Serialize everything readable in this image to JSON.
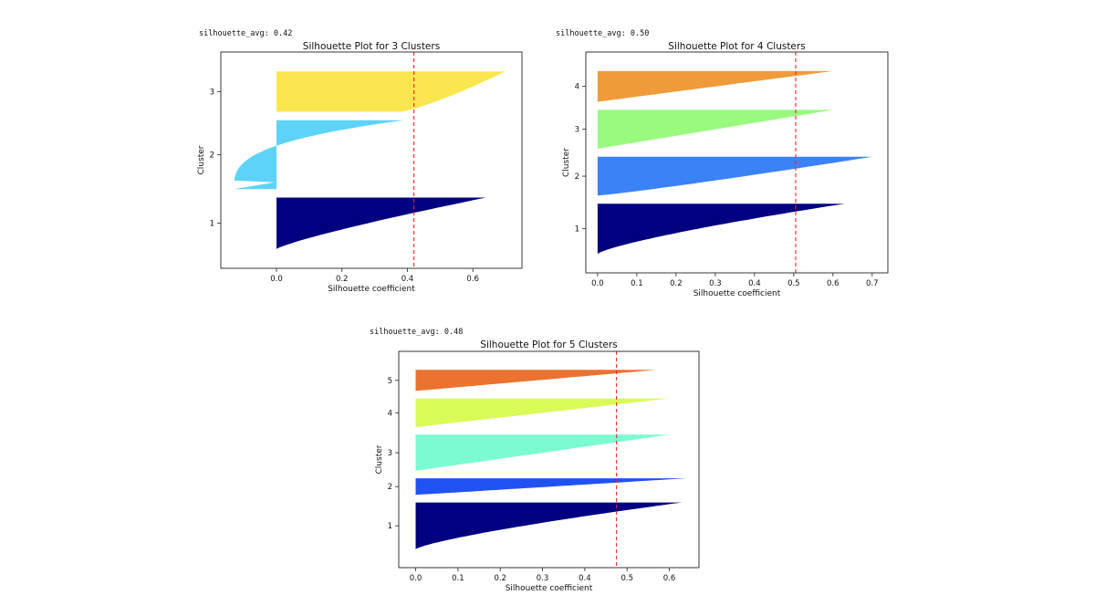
{
  "chart_data": [
    {
      "type": "silhouette",
      "avg_label": "silhouette_avg: 0.42",
      "title": "Silhouette Plot for 3 Clusters",
      "xlabel": "Silhouette coefficient",
      "ylabel": "Cluster",
      "xlim": [
        -0.17,
        0.75
      ],
      "xticks": [
        0.0,
        0.2,
        0.4,
        0.6
      ],
      "tick_labels": [
        "0.0",
        "0.2",
        "0.4",
        "0.6"
      ],
      "silhouette_avg": 0.42,
      "clusters": [
        {
          "label": "1",
          "color": "#000080",
          "size": 61,
          "max": 0.64,
          "min": 0.0,
          "curve": 1.2,
          "neg_tail": 0.0
        },
        {
          "label": "2",
          "color": "#5ed3f9",
          "size": 82,
          "max": 0.39,
          "min": -0.13,
          "curve": 3.0,
          "neg_tail": 0.12
        },
        {
          "label": "3",
          "color": "#fce64f",
          "size": 48,
          "max": 0.7,
          "min": 0.38,
          "curve": 0.8,
          "neg_tail": 0.0
        }
      ]
    },
    {
      "type": "silhouette",
      "avg_label": "silhouette_avg: 0.50",
      "title": "Silhouette Plot for 4 Clusters",
      "xlabel": "Silhouette coefficient",
      "ylabel": "Cluster",
      "xlim": [
        -0.03,
        0.74
      ],
      "xticks": [
        0.0,
        0.1,
        0.2,
        0.3,
        0.4,
        0.5,
        0.6,
        0.7
      ],
      "tick_labels": [
        "0.0",
        "0.1",
        "0.2",
        "0.3",
        "0.4",
        "0.5",
        "0.6",
        "0.7"
      ],
      "silhouette_avg": 0.505,
      "clusters": [
        {
          "label": "1",
          "color": "#000080",
          "size": 62,
          "max": 0.63,
          "min": 0.0,
          "curve": 1.3,
          "neg_tail": 0.0
        },
        {
          "label": "2",
          "color": "#3b82f6",
          "size": 48,
          "max": 0.7,
          "min": 0.0,
          "curve": 0.9,
          "neg_tail": 0.0
        },
        {
          "label": "3",
          "color": "#99fa7e",
          "size": 48,
          "max": 0.6,
          "min": 0.0,
          "curve": 1.0,
          "neg_tail": 0.0
        },
        {
          "label": "4",
          "color": "#ef9b3a",
          "size": 38,
          "max": 0.6,
          "min": 0.0,
          "curve": 1.0,
          "neg_tail": 0.0
        }
      ]
    },
    {
      "type": "silhouette",
      "avg_label": "silhouette_avg: 0.48",
      "title": "Silhouette Plot for 5 Clusters",
      "xlabel": "Silhouette coefficient",
      "ylabel": "Cluster",
      "xlim": [
        -0.04,
        0.67
      ],
      "xticks": [
        0.0,
        0.1,
        0.2,
        0.3,
        0.4,
        0.5,
        0.6
      ],
      "tick_labels": [
        "0.0",
        "0.1",
        "0.2",
        "0.3",
        "0.4",
        "0.5",
        "0.6"
      ],
      "silhouette_avg": 0.475,
      "clusters": [
        {
          "label": "1",
          "color": "#000080",
          "size": 62,
          "max": 0.63,
          "min": 0.0,
          "curve": 1.3,
          "neg_tail": 0.0
        },
        {
          "label": "2",
          "color": "#2052f3",
          "size": 22,
          "max": 0.64,
          "min": 0.0,
          "curve": 1.0,
          "neg_tail": 0.0
        },
        {
          "label": "3",
          "color": "#7bfbd1",
          "size": 48,
          "max": 0.6,
          "min": 0.0,
          "curve": 1.0,
          "neg_tail": 0.0
        },
        {
          "label": "4",
          "color": "#d8fb58",
          "size": 38,
          "max": 0.6,
          "min": 0.0,
          "curve": 1.0,
          "neg_tail": 0.0
        },
        {
          "label": "5",
          "color": "#ec7230",
          "size": 28,
          "max": 0.57,
          "min": 0.0,
          "curve": 1.0,
          "neg_tail": 0.0
        }
      ]
    }
  ]
}
